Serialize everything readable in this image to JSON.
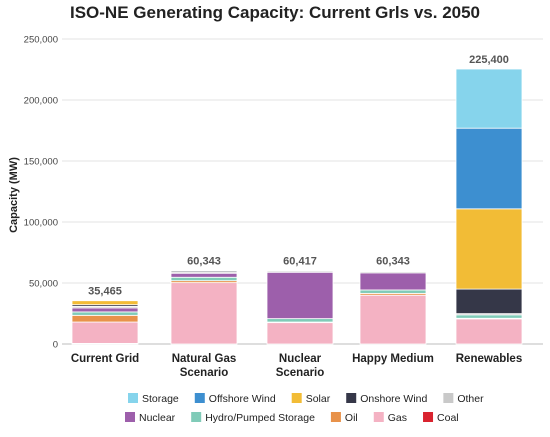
{
  "chart_data": {
    "type": "bar",
    "stacked": true,
    "title": "ISO-NE Generating Capacity: Current Grls vs. 2050",
    "xlabel": "",
    "ylabel": "Capacity (MW)",
    "ylim": [
      0,
      250000
    ],
    "yticks": [
      "0",
      "50,000",
      "100,000",
      "150,000",
      "200,000",
      "250,000"
    ],
    "grid": true,
    "legend_position": "bottom",
    "categories": [
      [
        "Current Grid"
      ],
      [
        "Natural Gas",
        "Scenario"
      ],
      [
        "Nuclear",
        "Scenario"
      ],
      [
        "Happy Medium"
      ],
      [
        "Renewables"
      ]
    ],
    "totals": [
      "35,465",
      "60,343",
      "60,417",
      "60,343",
      "225,400"
    ],
    "total_values": [
      35465,
      60343,
      60417,
      60343,
      225400
    ],
    "series": [
      {
        "name": "Coal",
        "color": "#d9232f",
        "values": [
          500,
          0,
          0,
          0,
          0
        ]
      },
      {
        "name": "Gas",
        "color": "#f4b2c3",
        "values": [
          17500,
          50300,
          17500,
          40000,
          20600
        ]
      },
      {
        "name": "Oil",
        "color": "#e8924a",
        "values": [
          5500,
          1600,
          500,
          1500,
          500
        ]
      },
      {
        "name": "Hydro/Pumped Storage",
        "color": "#80cbb8",
        "values": [
          2800,
          2800,
          2800,
          2800,
          2800
        ]
      },
      {
        "name": "Nuclear",
        "color": "#9d5fab",
        "values": [
          3300,
          3300,
          38000,
          14000,
          0
        ]
      },
      {
        "name": "Other",
        "color": "#c9c9c9",
        "values": [
          1200,
          1000,
          1000,
          1000,
          1000
        ]
      },
      {
        "name": "Onshore Wind",
        "color": "#353748",
        "values": [
          1400,
          1000,
          300,
          500,
          20100
        ]
      },
      {
        "name": "Solar",
        "color": "#f2bc36",
        "values": [
          3265,
          343,
          317,
          543,
          65800
        ]
      },
      {
        "name": "Offshore Wind",
        "color": "#3d8fd0",
        "values": [
          0,
          0,
          0,
          0,
          66100
        ]
      },
      {
        "name": "Storage",
        "color": "#86d4ec",
        "values": [
          0,
          0,
          0,
          0,
          48500
        ]
      }
    ],
    "legend_rows": [
      [
        "Storage",
        "Offshore Wind",
        "Solar",
        "Onshore Wind",
        "Other"
      ],
      [
        "Nuclear",
        "Hydro/Pumped Storage",
        "Oil",
        "Gas",
        "Coal"
      ]
    ]
  }
}
